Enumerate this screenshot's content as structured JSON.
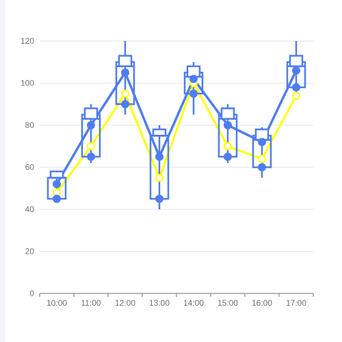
{
  "chart_data": {
    "type": "boxplot-line",
    "categories": [
      "10:00",
      "11:00",
      "12:00",
      "13:00",
      "14:00",
      "15:00",
      "16:00",
      "17:00"
    ],
    "ylim": [
      0,
      120
    ],
    "yticks": [
      0,
      20,
      40,
      60,
      80,
      100,
      120
    ],
    "grid": true,
    "boxes": [
      {
        "low": 45,
        "q1": 45,
        "median": 55,
        "q3": 55,
        "high": 58,
        "cap": 58
      },
      {
        "low": 62,
        "q1": 65,
        "median": 83,
        "q3": 85,
        "high": 90,
        "cap": 88
      },
      {
        "low": 85,
        "q1": 90,
        "median": 108,
        "q3": 110,
        "high": 120,
        "cap": 113
      },
      {
        "low": 40,
        "q1": 45,
        "median": 75,
        "q3": 75,
        "high": 80,
        "cap": 78
      },
      {
        "low": 85,
        "q1": 95,
        "median": 103,
        "q3": 105,
        "high": 110,
        "cap": 108
      },
      {
        "low": 62,
        "q1": 65,
        "median": 83,
        "q3": 85,
        "high": 90,
        "cap": 88
      },
      {
        "low": 55,
        "q1": 60,
        "median": 73,
        "q3": 75,
        "high": 79,
        "cap": 78
      },
      {
        "low": 92,
        "q1": 98,
        "median": 108,
        "q3": 110,
        "high": 120,
        "cap": 113
      }
    ],
    "series": [
      {
        "color": "#ffff00",
        "marker": "hollow-circle",
        "values": [
          48,
          70,
          95,
          55,
          100,
          70,
          64,
          94
        ]
      },
      {
        "color": "#4f7df0",
        "marker": "filled-circle",
        "values": [
          52,
          80,
          105,
          65,
          102,
          80,
          72,
          106
        ]
      },
      {
        "color": "#4f7df0",
        "marker": "filled-circle-only",
        "values": [
          45,
          65,
          90,
          45,
          95,
          65,
          60,
          98
        ]
      }
    ],
    "colors": {
      "box": "#4f7df0",
      "grid": "#e0e6f1",
      "axis": "#6e7079"
    }
  }
}
